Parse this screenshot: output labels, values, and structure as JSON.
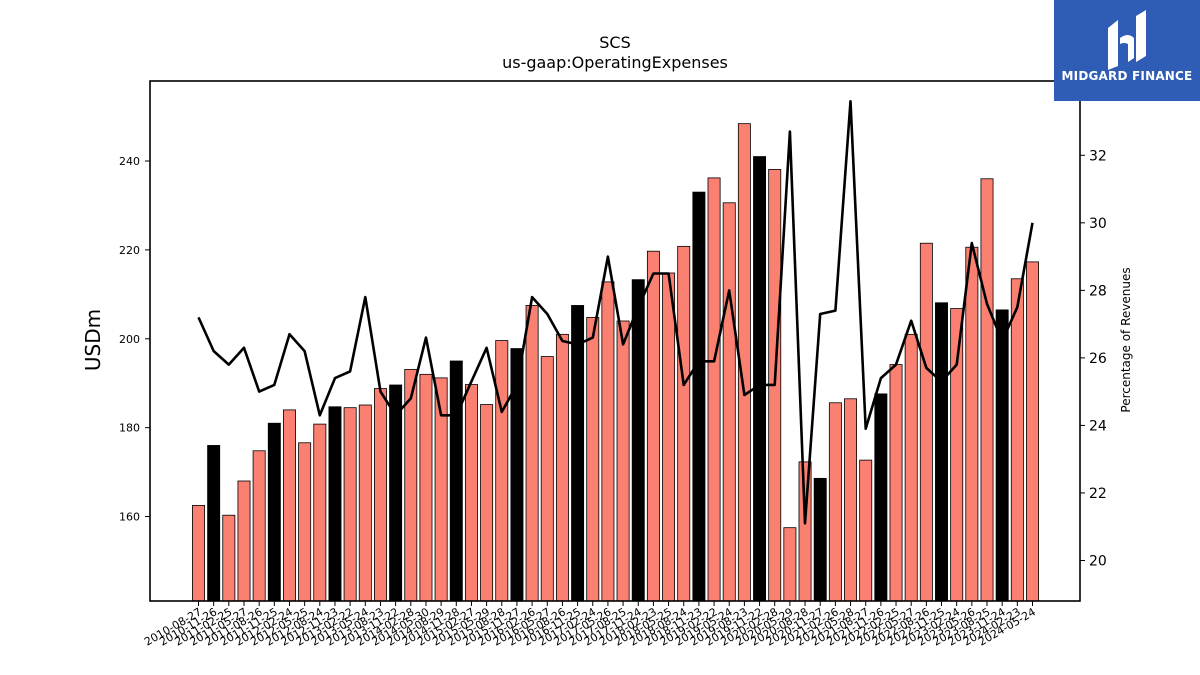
{
  "brand": {
    "name": "MIDGARD FINANCE",
    "bg_color": "#2f5db5"
  },
  "chart_data": {
    "type": "bar",
    "title": "SCS",
    "subtitle": "us-gaap:OperatingExpenses",
    "ylabel": "USDm",
    "y2label": "Percentage of Revenues",
    "ylim": [
      141,
      258
    ],
    "y2lim": [
      18.8,
      34.2
    ],
    "yticks": [
      160,
      180,
      200,
      220,
      240
    ],
    "y2ticks": [
      20,
      22,
      24,
      26,
      28,
      30,
      32
    ],
    "categories": [
      "2010-08-27",
      "2010-11-26",
      "2011-02-25",
      "2011-05-27",
      "2011-08-26",
      "2011-11-25",
      "2012-02-24",
      "2012-05-25",
      "2012-08-24",
      "2012-11-23",
      "2013-02-22",
      "2013-05-24",
      "2013-08-23",
      "2013-11-22",
      "2014-02-28",
      "2014-05-30",
      "2014-08-29",
      "2014-11-28",
      "2015-02-27",
      "2015-05-29",
      "2015-08-28",
      "2015-11-27",
      "2016-02-26",
      "2016-05-27",
      "2016-08-26",
      "2016-11-25",
      "2017-02-24",
      "2017-05-26",
      "2017-08-25",
      "2017-11-24",
      "2018-02-23",
      "2018-05-25",
      "2018-08-24",
      "2018-11-23",
      "2019-02-22",
      "2019-05-24",
      "2019-08-23",
      "2019-11-22",
      "2020-02-28",
      "2020-05-29",
      "2020-08-28",
      "2020-11-27",
      "2021-02-26",
      "2021-05-28",
      "2021-08-27",
      "2021-11-26",
      "2022-02-25",
      "2022-05-27",
      "2022-08-26",
      "2022-11-25",
      "2023-02-24",
      "2023-05-26",
      "2023-08-25",
      "2023-11-24",
      "2024-02-23",
      "2024-05-24"
    ],
    "series": [
      {
        "kind": "bar",
        "values": [
          162.5,
          176,
          160.3,
          168,
          174.8,
          181,
          184,
          176.6,
          180.8,
          184.7,
          184.5,
          185.1,
          188.8,
          189.6,
          193.1,
          192,
          191.2,
          195,
          189.7,
          185.2,
          199.6,
          197.8,
          207.5,
          196,
          201,
          207.5,
          204.8,
          212.8,
          204,
          213.3,
          219.7,
          214.8,
          220.8,
          233,
          236.2,
          230.6,
          248.4,
          241,
          238.1,
          157.5,
          172.3,
          168.6,
          185.6,
          186.5,
          172.7,
          187.6,
          194.2,
          201,
          221.5,
          208.1,
          206.8,
          220.6,
          236,
          206.5,
          213.5,
          217.3
        ],
        "colors": [
          "#fa8072",
          "#000000",
          "#fa8072",
          "#fa8072",
          "#fa8072",
          "#000000",
          "#fa8072",
          "#fa8072",
          "#fa8072",
          "#000000",
          "#fa8072",
          "#fa8072",
          "#fa8072",
          "#000000",
          "#fa8072",
          "#fa8072",
          "#fa8072",
          "#000000",
          "#fa8072",
          "#fa8072",
          "#fa8072",
          "#000000",
          "#fa8072",
          "#fa8072",
          "#fa8072",
          "#000000",
          "#fa8072",
          "#fa8072",
          "#fa8072",
          "#000000",
          "#fa8072",
          "#fa8072",
          "#fa8072",
          "#000000",
          "#fa8072",
          "#fa8072",
          "#fa8072",
          "#000000",
          "#fa8072",
          "#fa8072",
          "#fa8072",
          "#000000",
          "#fa8072",
          "#fa8072",
          "#fa8072",
          "#000000",
          "#fa8072",
          "#fa8072",
          "#fa8072",
          "#000000",
          "#fa8072",
          "#fa8072",
          "#fa8072",
          "#000000",
          "#fa8072",
          "#fa8072"
        ]
      },
      {
        "kind": "line",
        "axis": "right",
        "color": "#000000",
        "values": [
          27.2,
          26.2,
          25.8,
          26.3,
          25,
          25.2,
          26.7,
          26.2,
          24.3,
          25.4,
          25.6,
          27.8,
          25,
          24.3,
          24.8,
          26.6,
          24.3,
          24.3,
          25.3,
          26.3,
          24.4,
          25.2,
          27.8,
          27.3,
          26.5,
          26.4,
          26.6,
          29,
          26.4,
          27.5,
          28.5,
          28.5,
          25.2,
          25.9,
          25.9,
          28,
          24.9,
          25.2,
          25.2,
          32.7,
          21.1,
          27.3,
          27.4,
          33.6,
          23.9,
          25.4,
          25.8,
          27.1,
          25.7,
          25.3,
          25.8,
          29.4,
          27.6,
          26.5,
          27.5,
          30
        ]
      }
    ]
  }
}
